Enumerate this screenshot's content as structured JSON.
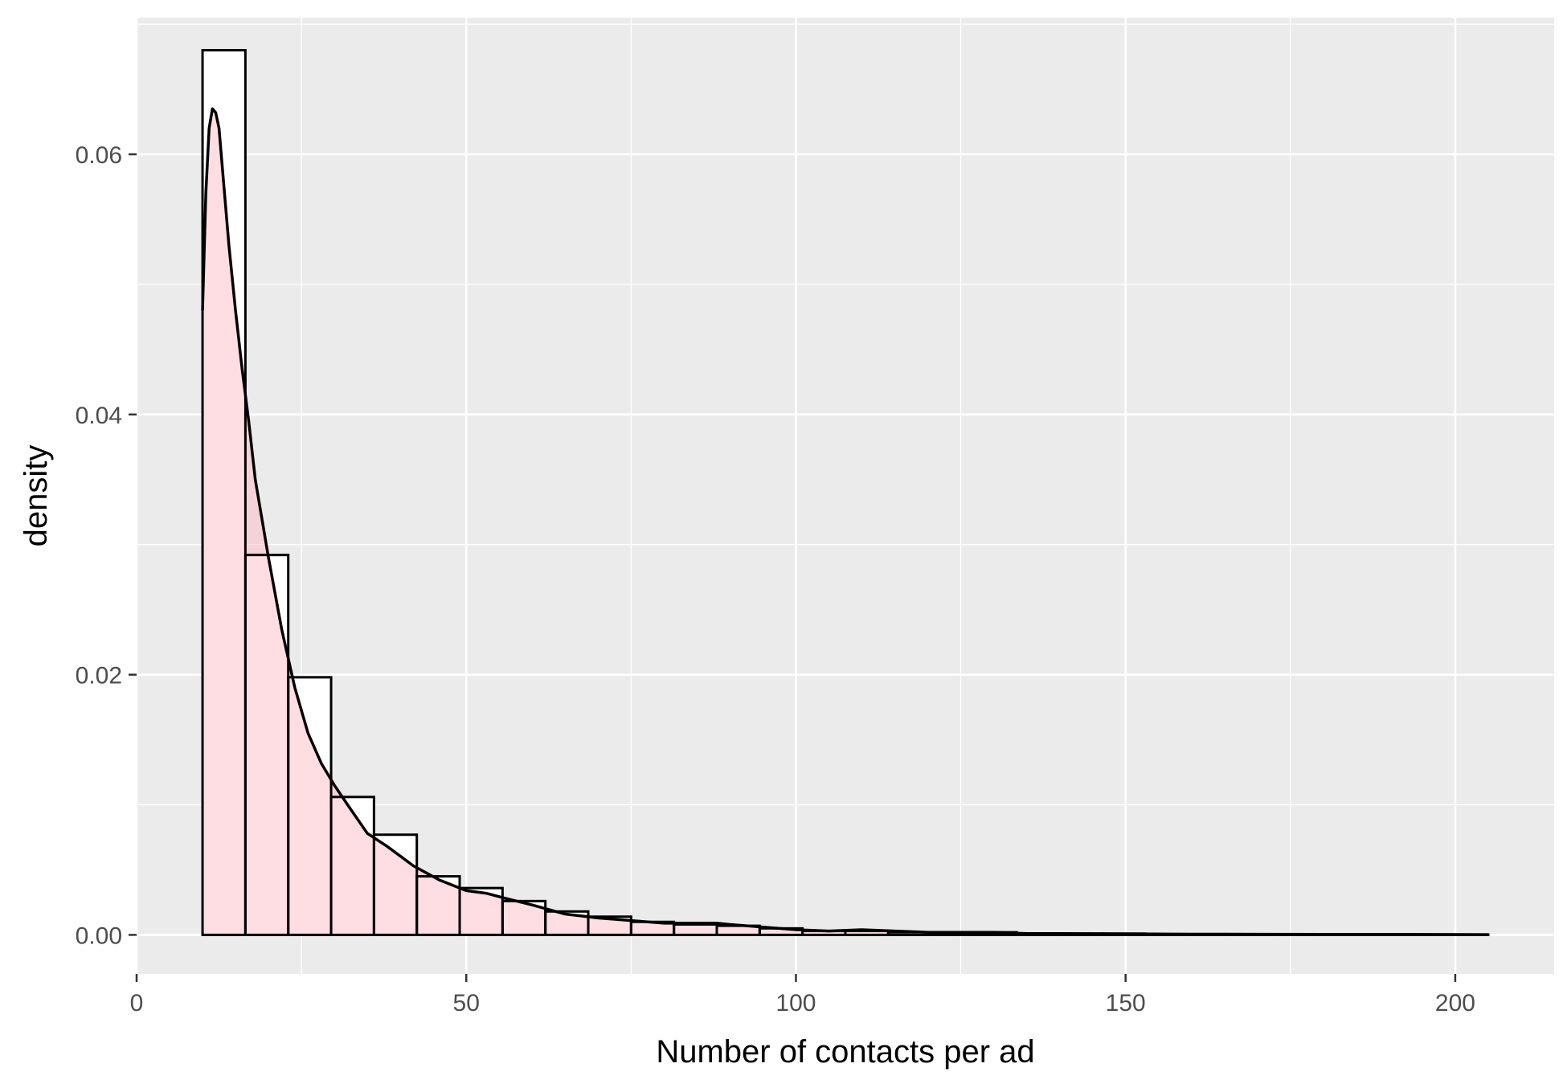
{
  "chart_data": {
    "type": "bar",
    "style": "histogram with density curve (ggplot2 theme_gray)",
    "title": "",
    "xlabel": "Number of contacts per ad",
    "ylabel": "density",
    "xlim": [
      0,
      215
    ],
    "ylim": [
      -0.003,
      0.0705
    ],
    "x_ticks": [
      0,
      50,
      100,
      150,
      200
    ],
    "x_tick_labels": [
      "0",
      "50",
      "100",
      "150",
      "200"
    ],
    "y_ticks": [
      0,
      0.02,
      0.04,
      0.06
    ],
    "y_tick_labels": [
      "0.00",
      "0.02",
      "0.04",
      "0.06"
    ],
    "grid": true,
    "legend": "none",
    "colors": {
      "panel_background": "#ebebeb",
      "grid": "#ffffff",
      "bar_fill": "#ffffff",
      "bar_outline": "#000000",
      "density_fill": "#ffb6c1",
      "density_line": "#000000"
    },
    "bins": {
      "start": 10,
      "width": 6.5,
      "values": [
        0.068,
        0.0292,
        0.0198,
        0.0106,
        0.0077,
        0.0045,
        0.0036,
        0.0026,
        0.0018,
        0.0014,
        0.001,
        0.0008,
        0.0007,
        0.0005,
        0.0003,
        0.0003,
        0.0002,
        0.0002,
        0.0002,
        0.0001,
        0.0001,
        0.0001,
        5e-05,
        5e-05,
        5e-05,
        5e-05,
        3e-05,
        3e-05,
        3e-05,
        3e-05
      ]
    },
    "density_curve": {
      "x": [
        10,
        10.5,
        11,
        11.5,
        12,
        12.5,
        13,
        14,
        15,
        16,
        17,
        18,
        20,
        22,
        24,
        26,
        28,
        30,
        32,
        35,
        38,
        42,
        46,
        50,
        53,
        56,
        60,
        65,
        70,
        75,
        80,
        85,
        88,
        90,
        95,
        100,
        105,
        110,
        115,
        120,
        125,
        130,
        135,
        140,
        150,
        160,
        170,
        180,
        190,
        200,
        205
      ],
      "y": [
        0.048,
        0.057,
        0.062,
        0.0635,
        0.0632,
        0.062,
        0.059,
        0.053,
        0.048,
        0.0435,
        0.0395,
        0.035,
        0.029,
        0.0235,
        0.019,
        0.0155,
        0.0132,
        0.0115,
        0.01,
        0.0078,
        0.0068,
        0.0053,
        0.0042,
        0.0034,
        0.0032,
        0.0028,
        0.0023,
        0.0016,
        0.0013,
        0.0011,
        0.0009,
        0.0009,
        0.0009,
        0.0008,
        0.0006,
        0.0004,
        0.0003,
        0.0004,
        0.0003,
        0.0002,
        0.0002,
        0.0002,
        0.0001,
        0.0001,
        8e-05,
        6e-05,
        5e-05,
        4e-05,
        4e-05,
        3e-05,
        2e-05
      ]
    }
  }
}
